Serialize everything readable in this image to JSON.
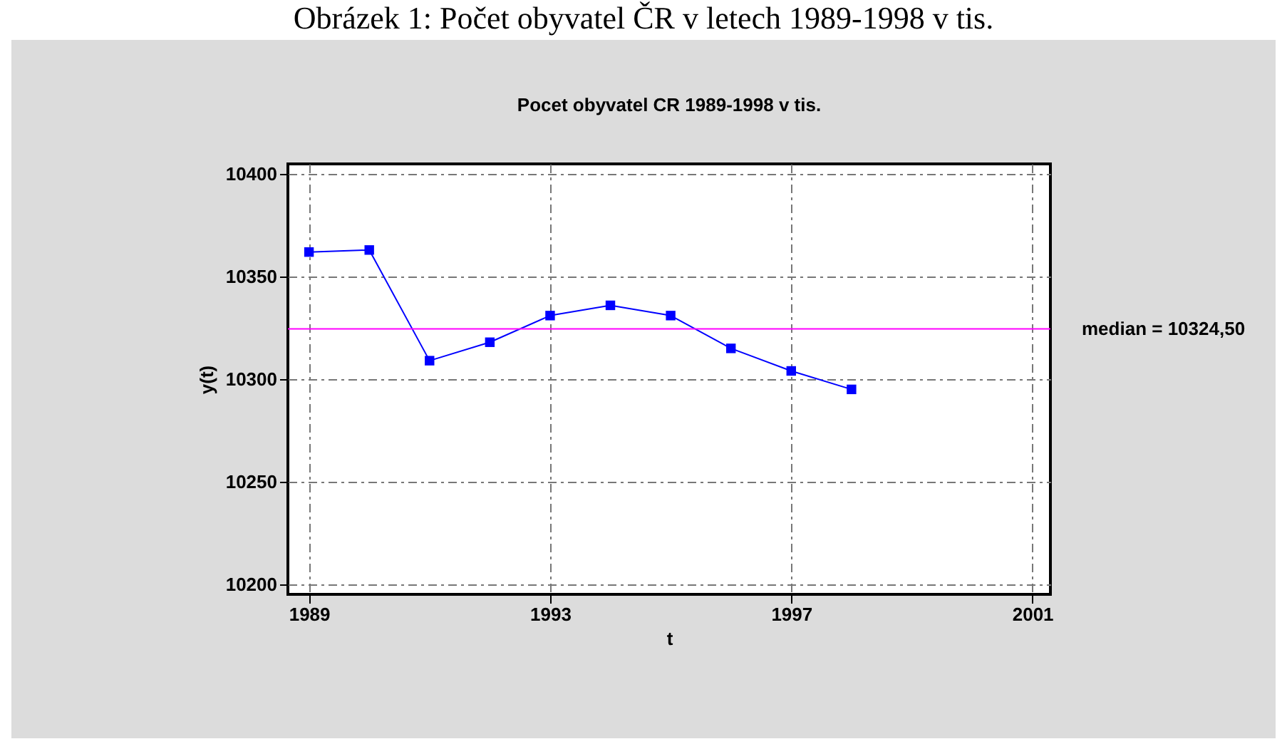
{
  "chart_data": {
    "type": "line",
    "title": "Pocet obyvatel CR 1989-1998 v tis.",
    "xlabel": "t",
    "ylabel": "y(t)",
    "annotations": [
      "Obrázek 1: Počet obyvatel ČR v letech 1989-1998 v tis."
    ],
    "x": [
      1989,
      1990,
      1991,
      1992,
      1993,
      1994,
      1995,
      1996,
      1997,
      1998
    ],
    "series": [
      {
        "color": "#0000ff",
        "values": [
          10362,
          10363,
          10309,
          10318,
          10331,
          10336,
          10331,
          10315,
          10304,
          10295
        ]
      }
    ],
    "xlim": [
      1988.65,
      2001.3
    ],
    "xticks": [
      1989,
      1993,
      1997,
      2001
    ],
    "ylim": [
      10195,
      10405
    ],
    "yticks": [
      10200,
      10250,
      10300,
      10350,
      10400
    ],
    "ref_lines": [
      {
        "axis": "y",
        "value": 10324.5,
        "label": "median = 10324,50",
        "color": "#ff00ff"
      }
    ],
    "grid": true,
    "marker": "square",
    "line_style": "solid"
  }
}
